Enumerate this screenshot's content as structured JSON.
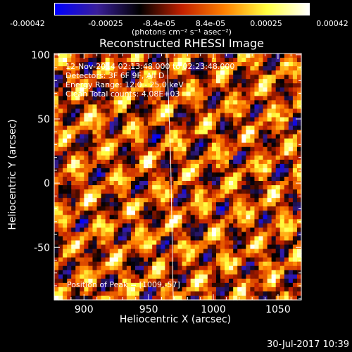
{
  "colors": {
    "background": "#000000",
    "foreground": "#ffffff",
    "colormap": [
      "#0000ff",
      "#3a1f9a",
      "#000000",
      "#c22000",
      "#ff8000",
      "#ffff40",
      "#ffffff"
    ]
  },
  "colorbar": {
    "ticks": [
      "-0.00042",
      "-0.00025",
      "-8.4e-05",
      "8.4e-05",
      "0.00025",
      "0.00042"
    ],
    "units": "(photons cm⁻² s⁻¹ asec⁻²)",
    "range": [
      -0.00042,
      0.00042
    ]
  },
  "chart_data": {
    "type": "heatmap",
    "title": "Reconstructed RHESSI Image",
    "xlabel": "Heliocentric X (arcsec)",
    "ylabel": "Heliocentric Y (arcsec)",
    "xlim": [
      877,
      1068
    ],
    "ylim": [
      -91,
      101
    ],
    "xticks": [
      900,
      950,
      1000,
      1050
    ],
    "yticks": [
      100,
      50,
      0,
      -50
    ],
    "limb_line": {
      "x": [
        964,
        967,
        969
      ],
      "y": [
        101,
        20,
        -91
      ]
    },
    "annotations": [
      "12-Nov-2014 02:13:48.000 to 02:23:48.000",
      "Detectors: 3F 6F 9F, All D",
      "Energy Range: 12.0 - 25.0 keV",
      "Clean    Total counts: 4.08E+03"
    ],
    "peak_label": "Position of Peak = [1009,-57]",
    "grid": false
  },
  "footer": {
    "timestamp": "30-Jul-2017 10:39"
  }
}
